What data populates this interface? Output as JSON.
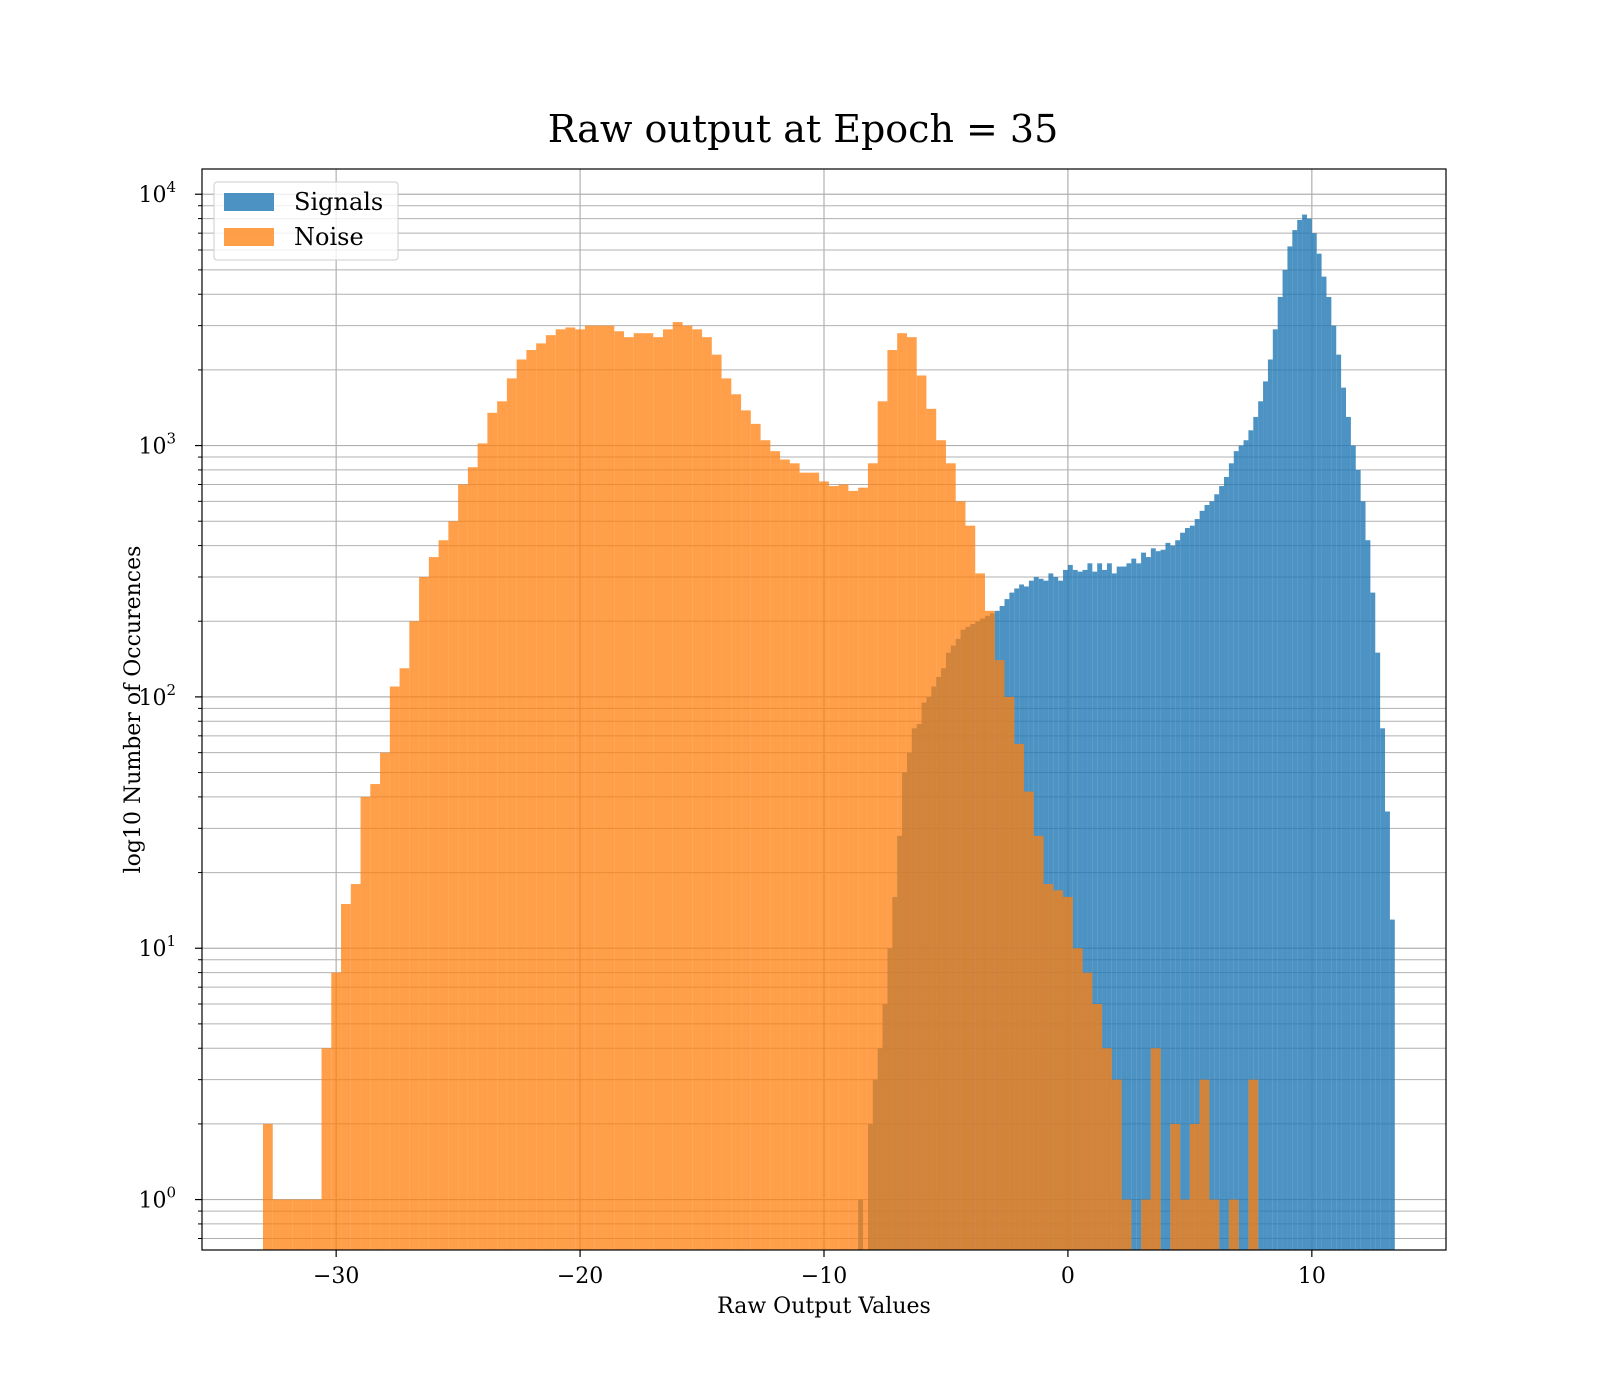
{
  "chart_data": {
    "type": "bar",
    "title": "Raw output at Epoch = 35",
    "xlabel": "Raw Output Values",
    "ylabel": "log10 Number of Occurences",
    "xlim": [
      -35.5,
      15.5
    ],
    "ylim": [
      0.63,
      12600
    ],
    "yscale": "log",
    "grid": true,
    "grid_minor_y": true,
    "legend_position": "upper-left",
    "x_ticks": [
      -30,
      -20,
      -10,
      0,
      10
    ],
    "x_tick_labels": [
      "−30",
      "−20",
      "−10",
      "0",
      "10"
    ],
    "y_ticks": [
      1,
      10,
      100,
      1000,
      10000
    ],
    "y_tick_labels": [
      {
        "base": "10",
        "exp": "0"
      },
      {
        "base": "10",
        "exp": "1"
      },
      {
        "base": "10",
        "exp": "2"
      },
      {
        "base": "10",
        "exp": "3"
      },
      {
        "base": "10",
        "exp": "4"
      }
    ],
    "series": [
      {
        "name": "Signals",
        "color": "#1f77b4",
        "opacity": 0.8,
        "bins": [
          [
            -8.6,
            -8.4,
            1
          ],
          [
            -8.4,
            -8.2,
            0
          ],
          [
            -8.2,
            -8.0,
            2
          ],
          [
            -8.0,
            -7.8,
            3
          ],
          [
            -7.8,
            -7.6,
            4
          ],
          [
            -7.6,
            -7.4,
            6
          ],
          [
            -7.4,
            -7.2,
            10
          ],
          [
            -7.2,
            -7.0,
            16
          ],
          [
            -7.0,
            -6.8,
            28
          ],
          [
            -6.8,
            -6.6,
            50
          ],
          [
            -6.6,
            -6.4,
            60
          ],
          [
            -6.4,
            -6.2,
            75
          ],
          [
            -6.2,
            -6.0,
            78
          ],
          [
            -6.0,
            -5.8,
            95
          ],
          [
            -5.8,
            -5.6,
            100
          ],
          [
            -5.6,
            -5.4,
            110
          ],
          [
            -5.4,
            -5.2,
            120
          ],
          [
            -5.2,
            -5.0,
            130
          ],
          [
            -5.0,
            -4.8,
            150
          ],
          [
            -4.8,
            -4.6,
            160
          ],
          [
            -4.6,
            -4.4,
            170
          ],
          [
            -4.4,
            -4.2,
            185
          ],
          [
            -4.2,
            -4.0,
            190
          ],
          [
            -4.0,
            -3.8,
            195
          ],
          [
            -3.8,
            -3.6,
            200
          ],
          [
            -3.6,
            -3.4,
            205
          ],
          [
            -3.4,
            -3.2,
            210
          ],
          [
            -3.2,
            -3.0,
            215
          ],
          [
            -3.0,
            -2.8,
            220
          ],
          [
            -2.8,
            -2.6,
            230
          ],
          [
            -2.6,
            -2.4,
            245
          ],
          [
            -2.4,
            -2.2,
            260
          ],
          [
            -2.2,
            -2.0,
            270
          ],
          [
            -2.0,
            -1.8,
            280
          ],
          [
            -1.8,
            -1.6,
            275
          ],
          [
            -1.6,
            -1.4,
            290
          ],
          [
            -1.4,
            -1.2,
            300
          ],
          [
            -1.2,
            -1.0,
            295
          ],
          [
            -1.0,
            -0.8,
            290
          ],
          [
            -0.8,
            -0.6,
            310
          ],
          [
            -0.6,
            -0.4,
            300
          ],
          [
            -0.4,
            -0.2,
            290
          ],
          [
            -0.2,
            0.0,
            320
          ],
          [
            0.0,
            0.2,
            335
          ],
          [
            0.2,
            0.4,
            320
          ],
          [
            0.4,
            0.6,
            315
          ],
          [
            0.6,
            0.8,
            320
          ],
          [
            0.8,
            1.0,
            340
          ],
          [
            1.0,
            1.2,
            315
          ],
          [
            1.2,
            1.4,
            340
          ],
          [
            1.4,
            1.6,
            320
          ],
          [
            1.6,
            1.8,
            340
          ],
          [
            1.8,
            2.0,
            310
          ],
          [
            2.0,
            2.2,
            330
          ],
          [
            2.2,
            2.4,
            330
          ],
          [
            2.4,
            2.6,
            340
          ],
          [
            2.6,
            2.8,
            355
          ],
          [
            2.8,
            3.0,
            340
          ],
          [
            3.0,
            3.2,
            375
          ],
          [
            3.2,
            3.4,
            360
          ],
          [
            3.4,
            3.6,
            390
          ],
          [
            3.6,
            3.8,
            380
          ],
          [
            3.8,
            4.0,
            385
          ],
          [
            4.0,
            4.2,
            410
          ],
          [
            4.2,
            4.4,
            400
          ],
          [
            4.4,
            4.6,
            420
          ],
          [
            4.6,
            4.8,
            450
          ],
          [
            4.8,
            5.0,
            470
          ],
          [
            5.0,
            5.2,
            480
          ],
          [
            5.2,
            5.4,
            510
          ],
          [
            5.4,
            5.6,
            550
          ],
          [
            5.6,
            5.8,
            580
          ],
          [
            5.8,
            6.0,
            600
          ],
          [
            6.0,
            6.2,
            640
          ],
          [
            6.2,
            6.4,
            690
          ],
          [
            6.4,
            6.6,
            750
          ],
          [
            6.6,
            6.8,
            850
          ],
          [
            6.8,
            7.0,
            950
          ],
          [
            7.0,
            7.2,
            1000
          ],
          [
            7.2,
            7.4,
            1050
          ],
          [
            7.4,
            7.6,
            1150
          ],
          [
            7.6,
            7.8,
            1300
          ],
          [
            7.8,
            8.0,
            1500
          ],
          [
            8.0,
            8.2,
            1800
          ],
          [
            8.2,
            8.4,
            2200
          ],
          [
            8.4,
            8.6,
            2900
          ],
          [
            8.6,
            8.8,
            3900
          ],
          [
            8.8,
            9.0,
            5000
          ],
          [
            9.0,
            9.2,
            6200
          ],
          [
            9.2,
            9.4,
            7200
          ],
          [
            9.4,
            9.6,
            7900
          ],
          [
            9.6,
            9.8,
            8300
          ],
          [
            9.8,
            10.0,
            8000
          ],
          [
            10.0,
            10.2,
            7000
          ],
          [
            10.2,
            10.4,
            5800
          ],
          [
            10.4,
            10.6,
            4700
          ],
          [
            10.6,
            10.8,
            3900
          ],
          [
            10.8,
            11.0,
            3000
          ],
          [
            11.0,
            11.2,
            2300
          ],
          [
            11.2,
            11.4,
            1700
          ],
          [
            11.4,
            11.6,
            1300
          ],
          [
            11.6,
            11.8,
            1000
          ],
          [
            11.8,
            12.0,
            800
          ],
          [
            12.0,
            12.2,
            600
          ],
          [
            12.2,
            12.4,
            420
          ],
          [
            12.4,
            12.6,
            260
          ],
          [
            12.6,
            12.8,
            150
          ],
          [
            12.8,
            13.0,
            75
          ],
          [
            13.0,
            13.2,
            35
          ],
          [
            13.2,
            13.4,
            13
          ]
        ]
      },
      {
        "name": "Noise",
        "color": "#ff7f0e",
        "opacity": 0.75,
        "bins": [
          [
            -33.0,
            -32.6,
            2
          ],
          [
            -32.6,
            -32.2,
            1
          ],
          [
            -32.2,
            -31.8,
            1
          ],
          [
            -31.8,
            -31.4,
            1
          ],
          [
            -31.4,
            -31.0,
            1
          ],
          [
            -31.0,
            -30.6,
            1
          ],
          [
            -30.6,
            -30.2,
            4
          ],
          [
            -30.2,
            -29.8,
            8
          ],
          [
            -29.8,
            -29.4,
            15
          ],
          [
            -29.4,
            -29.0,
            18
          ],
          [
            -29.0,
            -28.6,
            40
          ],
          [
            -28.6,
            -28.2,
            45
          ],
          [
            -28.2,
            -27.8,
            60
          ],
          [
            -27.8,
            -27.4,
            110
          ],
          [
            -27.4,
            -27.0,
            130
          ],
          [
            -27.0,
            -26.6,
            200
          ],
          [
            -26.6,
            -26.2,
            300
          ],
          [
            -26.2,
            -25.8,
            360
          ],
          [
            -25.8,
            -25.4,
            420
          ],
          [
            -25.4,
            -25.0,
            500
          ],
          [
            -25.0,
            -24.6,
            700
          ],
          [
            -24.6,
            -24.2,
            820
          ],
          [
            -24.2,
            -23.8,
            1020
          ],
          [
            -23.8,
            -23.4,
            1350
          ],
          [
            -23.4,
            -23.0,
            1500
          ],
          [
            -23.0,
            -22.6,
            1850
          ],
          [
            -22.6,
            -22.2,
            2200
          ],
          [
            -22.2,
            -21.8,
            2400
          ],
          [
            -21.8,
            -21.4,
            2550
          ],
          [
            -21.4,
            -21.0,
            2750
          ],
          [
            -21.0,
            -20.6,
            2900
          ],
          [
            -20.6,
            -20.2,
            2950
          ],
          [
            -20.2,
            -19.8,
            2900
          ],
          [
            -19.8,
            -19.4,
            3000
          ],
          [
            -19.4,
            -19.0,
            3000
          ],
          [
            -19.0,
            -18.6,
            3000
          ],
          [
            -18.6,
            -18.2,
            2850
          ],
          [
            -18.2,
            -17.8,
            2700
          ],
          [
            -17.8,
            -17.4,
            2800
          ],
          [
            -17.4,
            -17.0,
            2800
          ],
          [
            -17.0,
            -16.6,
            2700
          ],
          [
            -16.6,
            -16.2,
            2900
          ],
          [
            -16.2,
            -15.8,
            3100
          ],
          [
            -15.8,
            -15.4,
            3000
          ],
          [
            -15.4,
            -15.0,
            2900
          ],
          [
            -15.0,
            -14.6,
            2700
          ],
          [
            -14.6,
            -14.2,
            2300
          ],
          [
            -14.2,
            -13.8,
            1850
          ],
          [
            -13.8,
            -13.4,
            1600
          ],
          [
            -13.4,
            -13.0,
            1380
          ],
          [
            -13.0,
            -12.6,
            1220
          ],
          [
            -12.6,
            -12.2,
            1050
          ],
          [
            -12.2,
            -11.8,
            950
          ],
          [
            -11.8,
            -11.4,
            880
          ],
          [
            -11.4,
            -11.0,
            850
          ],
          [
            -11.0,
            -10.6,
            780
          ],
          [
            -10.6,
            -10.2,
            780
          ],
          [
            -10.2,
            -9.8,
            720
          ],
          [
            -9.8,
            -9.4,
            690
          ],
          [
            -9.4,
            -9.0,
            700
          ],
          [
            -9.0,
            -8.6,
            660
          ],
          [
            -8.6,
            -8.2,
            680
          ],
          [
            -8.2,
            -7.8,
            850
          ],
          [
            -7.8,
            -7.4,
            1500
          ],
          [
            -7.4,
            -7.0,
            2400
          ],
          [
            -7.0,
            -6.6,
            2800
          ],
          [
            -6.6,
            -6.2,
            2700
          ],
          [
            -6.2,
            -5.8,
            1900
          ],
          [
            -5.8,
            -5.4,
            1400
          ],
          [
            -5.4,
            -5.0,
            1050
          ],
          [
            -5.0,
            -4.6,
            850
          ],
          [
            -4.6,
            -4.2,
            600
          ],
          [
            -4.2,
            -3.8,
            480
          ],
          [
            -3.8,
            -3.4,
            310
          ],
          [
            -3.4,
            -3.0,
            220
          ],
          [
            -3.0,
            -2.6,
            140
          ],
          [
            -2.6,
            -2.2,
            100
          ],
          [
            -2.2,
            -1.8,
            65
          ],
          [
            -1.8,
            -1.4,
            42
          ],
          [
            -1.4,
            -1.0,
            28
          ],
          [
            -1.0,
            -0.6,
            18
          ],
          [
            -0.6,
            -0.2,
            17
          ],
          [
            -0.2,
            0.2,
            16
          ],
          [
            0.2,
            0.6,
            10
          ],
          [
            0.6,
            1.0,
            8
          ],
          [
            1.0,
            1.4,
            6
          ],
          [
            1.4,
            1.8,
            4
          ],
          [
            1.8,
            2.2,
            3
          ],
          [
            2.2,
            2.6,
            1
          ],
          [
            2.6,
            3.0,
            0
          ],
          [
            3.0,
            3.4,
            1
          ],
          [
            3.4,
            3.8,
            4
          ],
          [
            3.8,
            4.2,
            0
          ],
          [
            4.2,
            4.6,
            2
          ],
          [
            4.6,
            5.0,
            1
          ],
          [
            5.0,
            5.4,
            2
          ],
          [
            5.4,
            5.8,
            3
          ],
          [
            5.8,
            6.2,
            1
          ],
          [
            6.2,
            6.6,
            0
          ],
          [
            6.6,
            7.0,
            1
          ],
          [
            7.0,
            7.4,
            0
          ],
          [
            7.4,
            7.8,
            3
          ],
          [
            7.8,
            8.2,
            0
          ]
        ]
      }
    ]
  }
}
